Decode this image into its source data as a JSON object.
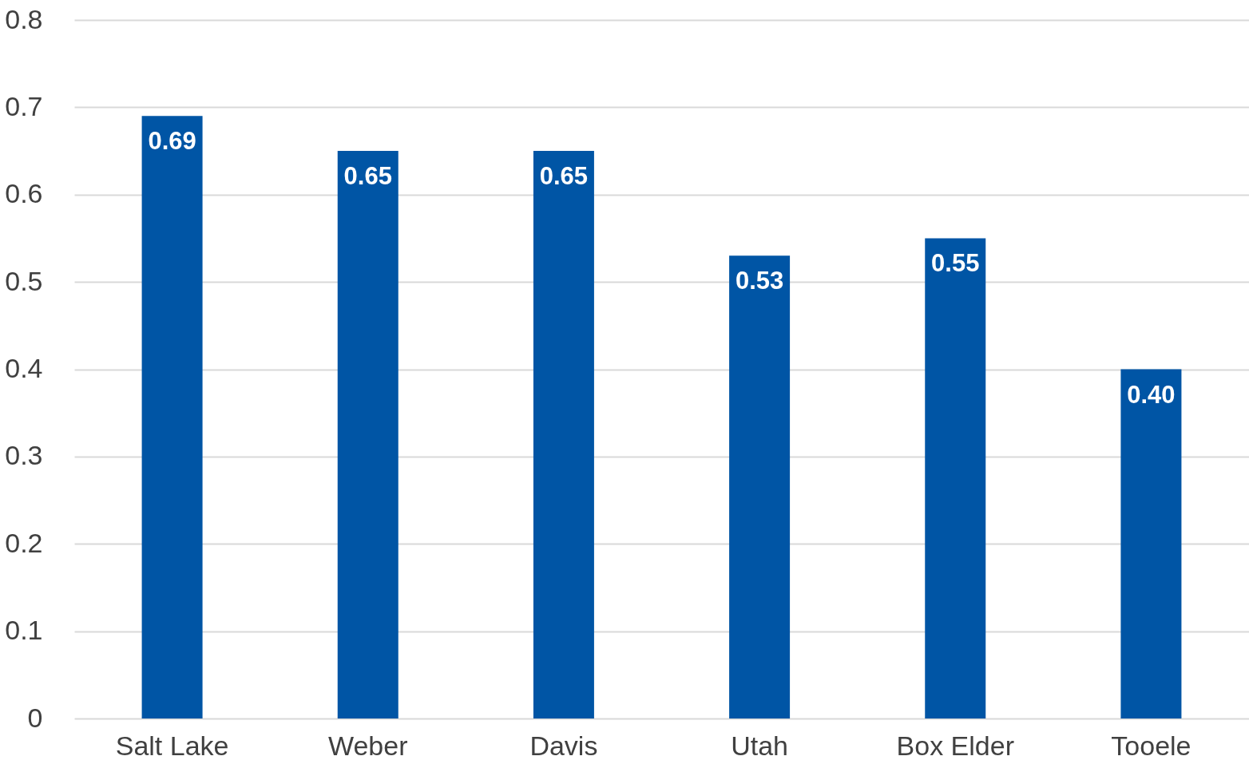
{
  "chart_data": {
    "type": "bar",
    "categories": [
      "Salt Lake",
      "Weber",
      "Davis",
      "Utah",
      "Box Elder",
      "Tooele"
    ],
    "values": [
      0.69,
      0.65,
      0.65,
      0.53,
      0.55,
      0.4
    ],
    "value_labels": [
      "0.69",
      "0.65",
      "0.65",
      "0.53",
      "0.55",
      "0.40"
    ],
    "color": "#0055a5",
    "ylim": [
      0,
      0.8
    ],
    "yticks": [
      0,
      0.1,
      0.2,
      0.3,
      0.4,
      0.5,
      0.6,
      0.7,
      0.8
    ],
    "grid": "y"
  }
}
